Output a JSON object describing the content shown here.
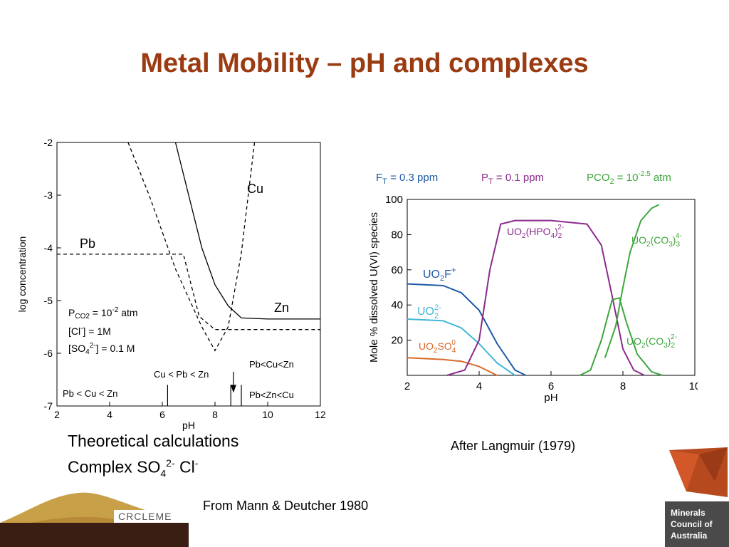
{
  "slide": {
    "title": "Metal Mobility – pH and complexes",
    "caption_line1": "Theoretical calculations",
    "caption_line2_prefix": "Complex SO",
    "caption_line2_sub": "4",
    "caption_line2_sup": "2-",
    "caption_line2_suffix": " Cl",
    "caption_line2_sup2": "-",
    "source_left": "From Mann & Deutcher 1980",
    "source_right": "After Langmuir (1979)",
    "logo_left_text": "CRCLEME",
    "logo_right_lines": [
      "Minerals",
      "Council of",
      "Australia"
    ],
    "colors": {
      "title": "#9a3b12",
      "logo_gold": "#c8a048",
      "logo_dark": "#3a1e14",
      "logo_gray": "#555555"
    }
  },
  "chart_data": [
    {
      "type": "line",
      "xlabel": "pH",
      "ylabel": "log concentration",
      "xlim": [
        2,
        12
      ],
      "ylim": [
        -7,
        -2
      ],
      "xticks": [
        2,
        4,
        6,
        8,
        10,
        12
      ],
      "yticks": [
        -2,
        -3,
        -4,
        -5,
        -6,
        -7
      ],
      "grid": false,
      "series": [
        {
          "name": "Cu",
          "style": "dashed",
          "x": [
            4.7,
            5.5,
            6.5,
            7.5,
            8.0,
            8.5,
            9.0,
            9.5
          ],
          "y": [
            -2.0,
            -3.0,
            -4.4,
            -5.5,
            -5.95,
            -5.5,
            -4.1,
            -2.0
          ]
        },
        {
          "name": "Pb",
          "style": "dashed",
          "x": [
            2.0,
            6.8,
            7.4,
            8.0,
            8.5,
            9.0,
            12.0
          ],
          "y": [
            -4.12,
            -4.12,
            -5.3,
            -5.55,
            -5.55,
            -5.55,
            -5.55
          ]
        },
        {
          "name": "Zn",
          "style": "solid",
          "x": [
            6.5,
            7.0,
            7.5,
            8.0,
            8.5,
            9.0,
            10.0,
            12.0
          ],
          "y": [
            -2.0,
            -3.0,
            -4.0,
            -4.7,
            -5.1,
            -5.33,
            -5.35,
            -5.35
          ]
        }
      ],
      "markers_x": [
        6.2,
        8.6,
        9.0
      ],
      "arrow_x": 8.7,
      "labels": {
        "cu": "Cu",
        "pb": "Pb",
        "zn": "Zn",
        "pco2": "P",
        "pco2_sub": "CO2",
        "pco2_val": " = 10",
        "pco2_sup": "-2",
        "pco2_unit": " atm",
        "cl": "[Cl",
        "cl_sup": "-",
        "cl_val": "] = 1M",
        "so4": "[SO",
        "so4_sub": "4",
        "so4_sup": "2-",
        "so4_val": "] = 0.1 M",
        "order1": "Cu < Pb < Zn",
        "order2": "Pb<Cu<Zn",
        "order3": "Pb < Cu < Zn",
        "order4": "Pb<Zn<Cu"
      }
    },
    {
      "type": "line",
      "xlabel": "pH",
      "ylabel": "Mole % dissolved U(VI) species",
      "xlim": [
        2,
        10
      ],
      "ylim": [
        0,
        100
      ],
      "xticks": [
        2,
        4,
        6,
        8,
        10
      ],
      "yticks": [
        20,
        40,
        60,
        80,
        100
      ],
      "grid": false,
      "header": {
        "ft": "F",
        "ft_sub": "T",
        "ft_val": " = 0.3 ppm",
        "pt": "P",
        "pt_sub": "T",
        "pt_val": " = 0.1 ppm",
        "pco2": "PCO",
        "pco2_sub": "2",
        "pco2_val": " = 10",
        "pco2_sup": "-2.5",
        "pco2_unit": " atm"
      },
      "series": [
        {
          "name": "UO2F+",
          "color": "#1f5aa6",
          "x": [
            2.0,
            3.0,
            3.5,
            4.0,
            4.5,
            5.0,
            5.3
          ],
          "y": [
            52,
            51,
            47,
            37,
            18,
            3,
            0
          ]
        },
        {
          "name": "UO2 2-",
          "color": "#41b6d6",
          "x": [
            2.0,
            3.0,
            3.5,
            4.0,
            4.5,
            5.0
          ],
          "y": [
            32,
            31,
            27,
            18,
            7,
            0
          ]
        },
        {
          "name": "UO2SO4 0",
          "color": "#d86a2a",
          "x": [
            2.0,
            3.0,
            3.5,
            4.0,
            4.5
          ],
          "y": [
            10,
            9,
            8,
            5,
            0
          ]
        },
        {
          "name": "UO2(HPO4)2 2-",
          "color": "#8b2a8c",
          "x": [
            3.1,
            3.6,
            4.0,
            4.3,
            4.6,
            5.0,
            6.0,
            7.0,
            7.4,
            7.7,
            8.0,
            8.3,
            8.6
          ],
          "y": [
            0,
            3,
            20,
            60,
            86,
            88,
            88,
            86,
            74,
            45,
            15,
            3,
            0
          ]
        },
        {
          "name": "UO2(CO3)3 4-",
          "color": "#3ca63a",
          "x": [
            7.5,
            7.8,
            8.0,
            8.2,
            8.5,
            8.8,
            9.0
          ],
          "y": [
            10,
            28,
            50,
            70,
            88,
            95,
            97
          ]
        },
        {
          "name": "UO2(CO3)2 2-",
          "color": "#3ca63a",
          "x": [
            6.8,
            7.1,
            7.4,
            7.7,
            7.9,
            8.1,
            8.4,
            8.8,
            9.1
          ],
          "y": [
            0,
            3,
            20,
            43,
            44,
            30,
            12,
            2,
            0
          ]
        }
      ],
      "labels": {
        "uo2f_a": "UO",
        "uo2f_b": "2",
        "uo2f_c": "F",
        "uo2f_d": "+",
        "uo2_a": "UO",
        "uo2_b": "2",
        "uo2_c": "2-",
        "uo2so4_a": "UO",
        "uo2so4_b": "2",
        "uo2so4_c": "SO",
        "uo2so4_d": "4",
        "uo2so4_e": "0",
        "hpo_a": "UO",
        "hpo_b": "2",
        "hpo_c": "(HPO",
        "hpo_d": "4",
        "hpo_e": ")",
        "hpo_f": "2",
        "hpo_g": "2-",
        "co3_3_a": "UO",
        "co3_3_b": "2",
        "co3_3_c": "(CO",
        "co3_3_d": "3",
        "co3_3_e": ")",
        "co3_3_f": "3",
        "co3_3_g": "4-",
        "co3_2_a": "UO",
        "co3_2_b": "2",
        "co3_2_c": "(CO",
        "co3_2_d": "3",
        "co3_2_e": ")",
        "co3_2_f": "2",
        "co3_2_g": "2-"
      }
    }
  ]
}
